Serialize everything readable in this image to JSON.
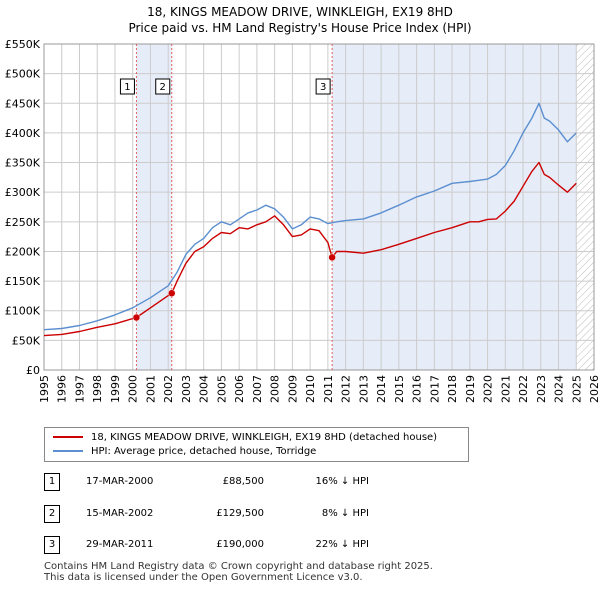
{
  "title": {
    "line1": "18, KINGS MEADOW DRIVE, WINKLEIGH, EX19 8HD",
    "line2": "Price paid vs. HM Land Registry's House Price Index (HPI)"
  },
  "colors": {
    "property": "#cc0000",
    "hpi": "#5b8fd0",
    "shade": "#e6ecf8",
    "grid": "#cccccc",
    "marker_line": "#e06060"
  },
  "chart_data": {
    "type": "line",
    "title": "18, KINGS MEADOW DRIVE, WINKLEIGH, EX19 8HD — Price paid vs. HM Land Registry's House Price Index (HPI)",
    "xlabel": "",
    "ylabel": "",
    "xlim": [
      1995,
      2026
    ],
    "ylim": [
      0,
      550000
    ],
    "x_ticks": [
      1995,
      1996,
      1997,
      1998,
      1999,
      2000,
      2001,
      2002,
      2003,
      2004,
      2005,
      2006,
      2007,
      2008,
      2009,
      2010,
      2011,
      2012,
      2013,
      2014,
      2015,
      2016,
      2017,
      2018,
      2019,
      2020,
      2021,
      2022,
      2023,
      2024,
      2025,
      2026
    ],
    "y_ticks": [
      0,
      50000,
      100000,
      150000,
      200000,
      250000,
      300000,
      350000,
      400000,
      450000,
      500000,
      550000
    ],
    "y_tick_labels": [
      "£0",
      "£50K",
      "£100K",
      "£150K",
      "£200K",
      "£250K",
      "£300K",
      "£350K",
      "£400K",
      "£450K",
      "£500K",
      "£550K"
    ],
    "grid": true,
    "shaded_ranges": [
      [
        2000.21,
        2002.2
      ],
      [
        2011.24,
        2025.0
      ]
    ],
    "hatched_range": [
      2025.0,
      2026
    ],
    "series": [
      {
        "name": "18, KINGS MEADOW DRIVE, WINKLEIGH, EX19 8HD (detached house)",
        "x": [
          1995.0,
          1996.0,
          1997.0,
          1998.0,
          1999.0,
          2000.21,
          2001.0,
          2002.2,
          2002.5,
          2003.0,
          2003.5,
          2004.0,
          2004.5,
          2005.0,
          2005.5,
          2006.0,
          2006.5,
          2007.0,
          2007.5,
          2008.0,
          2008.5,
          2009.0,
          2009.5,
          2010.0,
          2010.5,
          2011.0,
          2011.24,
          2011.5,
          2012.0,
          2013.0,
          2014.0,
          2015.0,
          2016.0,
          2017.0,
          2018.0,
          2019.0,
          2019.5,
          2020.0,
          2020.5,
          2021.0,
          2021.5,
          2022.0,
          2022.5,
          2022.9,
          2023.2,
          2023.5,
          2024.0,
          2024.5,
          2025.0
        ],
        "values": [
          58000,
          60000,
          65000,
          72000,
          78000,
          88500,
          105000,
          129500,
          150000,
          180000,
          200000,
          208000,
          222000,
          232000,
          230000,
          240000,
          238000,
          245000,
          250000,
          260000,
          245000,
          225000,
          228000,
          238000,
          235000,
          215000,
          190000,
          200000,
          200000,
          197000,
          203000,
          212000,
          222000,
          232000,
          240000,
          250000,
          250000,
          254000,
          255000,
          268000,
          285000,
          310000,
          335000,
          350000,
          330000,
          325000,
          312000,
          300000,
          315000
        ]
      },
      {
        "name": "HPI: Average price, detached house, Torridge",
        "x": [
          1995.0,
          1996.0,
          1997.0,
          1998.0,
          1999.0,
          2000.0,
          2001.0,
          2002.0,
          2002.5,
          2003.0,
          2003.5,
          2004.0,
          2004.5,
          2005.0,
          2005.5,
          2006.0,
          2006.5,
          2007.0,
          2007.5,
          2008.0,
          2008.5,
          2009.0,
          2009.5,
          2010.0,
          2010.5,
          2011.0,
          2011.5,
          2012.0,
          2013.0,
          2014.0,
          2015.0,
          2016.0,
          2017.0,
          2018.0,
          2019.0,
          2019.5,
          2020.0,
          2020.5,
          2021.0,
          2021.5,
          2022.0,
          2022.5,
          2022.9,
          2023.2,
          2023.5,
          2024.0,
          2024.5,
          2025.0
        ],
        "values": [
          68000,
          70000,
          75000,
          83000,
          93000,
          105000,
          122000,
          142000,
          165000,
          195000,
          212000,
          222000,
          240000,
          250000,
          245000,
          255000,
          265000,
          270000,
          278000,
          272000,
          258000,
          238000,
          245000,
          258000,
          255000,
          247000,
          250000,
          252000,
          255000,
          265000,
          278000,
          292000,
          302000,
          315000,
          318000,
          320000,
          322000,
          330000,
          345000,
          370000,
          400000,
          425000,
          450000,
          425000,
          420000,
          405000,
          385000,
          400000
        ]
      }
    ],
    "sales": [
      {
        "label": "1",
        "x": 2000.21,
        "value": 88500
      },
      {
        "label": "2",
        "x": 2002.2,
        "value": 129500
      },
      {
        "label": "3",
        "x": 2011.24,
        "value": 190000
      }
    ]
  },
  "legend": {
    "property_label": "18, KINGS MEADOW DRIVE, WINKLEIGH, EX19 8HD (detached house)",
    "hpi_label": "HPI: Average price, detached house, Torridge"
  },
  "transactions": [
    {
      "num": "1",
      "date": "17-MAR-2000",
      "price": "£88,500",
      "hpi": "16% ↓ HPI"
    },
    {
      "num": "2",
      "date": "15-MAR-2002",
      "price": "£129,500",
      "hpi": "8% ↓ HPI"
    },
    {
      "num": "3",
      "date": "29-MAR-2011",
      "price": "£190,000",
      "hpi": "22% ↓ HPI"
    }
  ],
  "footer": {
    "line1": "Contains HM Land Registry data © Crown copyright and database right 2025.",
    "line2": "This data is licensed under the Open Government Licence v3.0."
  }
}
